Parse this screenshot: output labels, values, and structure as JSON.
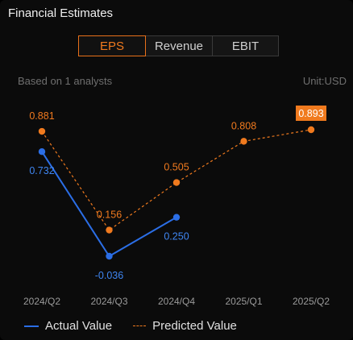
{
  "header": {
    "title": "Financial Estimates"
  },
  "tabs": [
    {
      "label": "EPS",
      "active": true
    },
    {
      "label": "Revenue",
      "active": false
    },
    {
      "label": "EBIT",
      "active": false
    }
  ],
  "info": {
    "based_on": "Based on 1 analysts",
    "unit": "Unit:USD"
  },
  "legend": {
    "actual": "Actual Value",
    "predicted": "Predicted Value"
  },
  "colors": {
    "actual": "#2b6ee6",
    "predicted": "#f07a1e",
    "highlight_bg": "#f07a1e"
  },
  "chart_data": {
    "type": "line",
    "categories": [
      "2024/Q2",
      "2024/Q3",
      "2024/Q4",
      "2025/Q1",
      "2025/Q2"
    ],
    "series": [
      {
        "name": "Actual Value",
        "values": [
          0.732,
          -0.036,
          0.25,
          null,
          null
        ],
        "labels": [
          "0.732",
          "-0.036",
          "0.250",
          "",
          ""
        ]
      },
      {
        "name": "Predicted Value",
        "values": [
          0.881,
          0.156,
          0.505,
          0.808,
          0.893
        ],
        "labels": [
          "0.881",
          "0.156",
          "0.505",
          "0.808",
          "0.893"
        ]
      }
    ],
    "highlighted_label": "0.893",
    "grid": false,
    "legend_position": "bottom-left"
  }
}
